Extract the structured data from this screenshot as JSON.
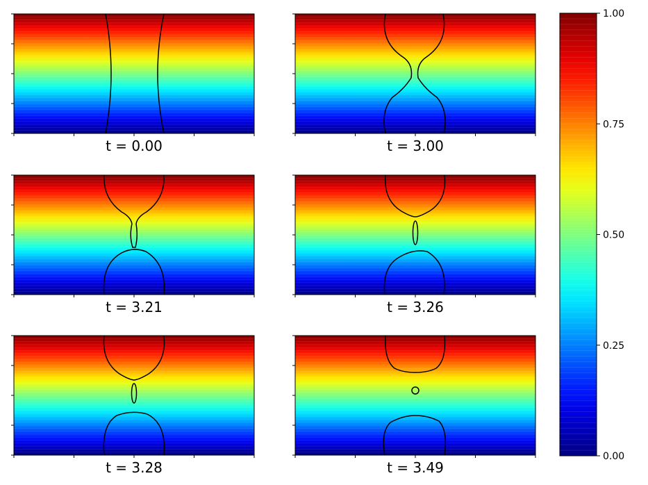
{
  "chart_data": {
    "type": "heatmap",
    "panels": [
      {
        "title": "t = 0.00",
        "time": 0.0
      },
      {
        "title": "t = 3.00",
        "time": 3.0
      },
      {
        "title": "t = 3.21",
        "time": 3.21
      },
      {
        "title": "t = 3.26",
        "time": 3.26
      },
      {
        "title": "t = 3.28",
        "time": 3.28
      },
      {
        "title": "t = 3.49",
        "time": 3.49
      }
    ],
    "colormap": "jet",
    "colorbar": {
      "range": [
        0.0,
        1.0
      ],
      "ticks": [
        0.0,
        0.25,
        0.5,
        0.75,
        1.0
      ],
      "tick_labels": [
        "0.00",
        "0.25",
        "0.50",
        "0.75",
        "1.00"
      ],
      "placement": "right"
    },
    "grid": false,
    "layout": "3 rows x 2 columns",
    "interface_color": "#000000"
  }
}
